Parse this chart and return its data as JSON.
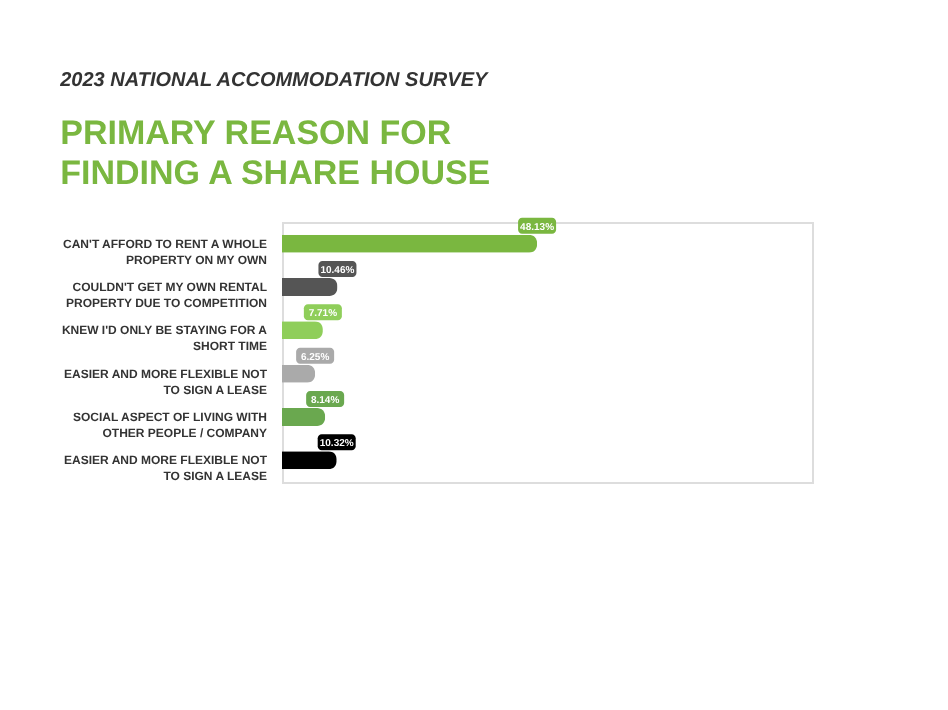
{
  "chart_data": {
    "type": "bar",
    "orientation": "horizontal",
    "title": "2023 NATIONAL ACCOMMODATION SURVEY",
    "subtitle": "PRIMARY REASON FOR FINDING A SHARE HOUSE",
    "categories": [
      "CAN'T AFFORD TO RENT A WHOLE PROPERTY ON MY OWN",
      "COULDN'T GET MY OWN RENTAL PROPERTY DUE TO COMPETITION",
      "KNEW I'D ONLY BE STAYING FOR A SHORT TIME",
      "EASIER AND MORE FLEXIBLE NOT TO SIGN A LEASE",
      "SOCIAL ASPECT OF LIVING WITH OTHER PEOPLE / COMPANY",
      "EASIER AND MORE FLEXIBLE NOT TO SIGN A LEASE"
    ],
    "values": [
      48.13,
      10.46,
      7.71,
      6.25,
      8.14,
      10.32
    ],
    "value_labels": [
      "48.13%",
      "10.46%",
      "7.71%",
      "6.25%",
      "8.14%",
      "10.32%"
    ],
    "colors": [
      "#7ab740",
      "#555555",
      "#8fce5a",
      "#aaaaaa",
      "#6aa84f",
      "#000000"
    ],
    "xlim": [
      0,
      100
    ],
    "tick_labels": "y"
  }
}
